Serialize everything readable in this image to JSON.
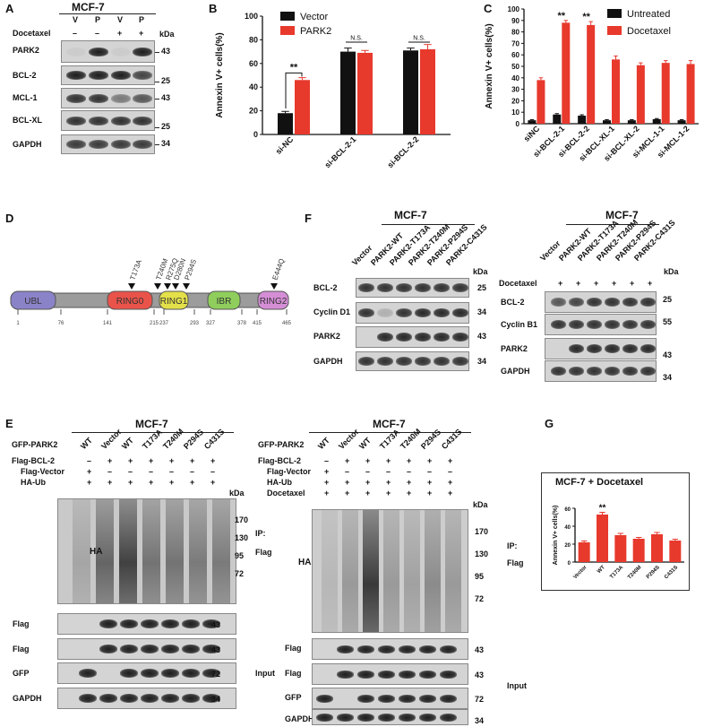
{
  "panels": {
    "A": "A",
    "B": "B",
    "C": "C",
    "D": "D",
    "E": "E",
    "F": "F",
    "G": "G"
  },
  "panelA": {
    "cell": "MCF-7",
    "lanes": [
      "V",
      "P",
      "V",
      "P"
    ],
    "docetaxel_label": "Docetaxel",
    "docetaxel": [
      "–",
      "–",
      "+",
      "+"
    ],
    "kda": "kDa",
    "rows": [
      {
        "name": "PARK2",
        "mw": "43"
      },
      {
        "name": "BCL-2",
        "mw": "25"
      },
      {
        "name": "MCL-1",
        "mw": "43"
      },
      {
        "name": "BCL-XL",
        "mw": "25"
      },
      {
        "name": "GAPDH",
        "mw": "34"
      }
    ]
  },
  "panelD": {
    "domains": [
      {
        "name": "UBL",
        "color": "#8a83c8"
      },
      {
        "name": "RING0",
        "color": "#e9534a"
      },
      {
        "name": "RING1",
        "color": "#e3e04a"
      },
      {
        "name": "IBR",
        "color": "#8fce5c"
      },
      {
        "name": "RING2",
        "color": "#d58ed6"
      }
    ],
    "positions": [
      "1",
      "76",
      "141",
      "215",
      "237",
      "293",
      "327",
      "378",
      "415",
      "465"
    ],
    "mutations": [
      "T173A",
      "T240M",
      "R275Q",
      "D280N",
      "P294S",
      "E444Q"
    ]
  },
  "panelF": {
    "cell": "MCF-7",
    "lanes": [
      "Vector",
      "PARK2-WT",
      "PARK2-T173A",
      "PARK2-T240M",
      "PARK2-P294S",
      "PARK2-C431S"
    ],
    "kda": "kDa",
    "docetaxel_label": "Docetaxel",
    "docetaxel": [
      "+",
      "+",
      "+",
      "+",
      "+",
      "+"
    ],
    "left_rows": [
      {
        "name": "BCL-2",
        "mw": "25"
      },
      {
        "name": "Cyclin D1",
        "mw": "34"
      },
      {
        "name": "PARK2",
        "mw": "43"
      },
      {
        "name": "GAPDH",
        "mw": "34"
      }
    ],
    "right_rows": [
      {
        "name": "BCL-2",
        "mw": "25"
      },
      {
        "name": "Cyclin B1",
        "mw": "55"
      },
      {
        "name": "PARK2",
        "mw": "43"
      },
      {
        "name": "GAPDH",
        "mw": "34"
      }
    ]
  },
  "panelE": {
    "cell": "MCF-7",
    "lanes": [
      "WT",
      "Vector",
      "WT",
      "T173A",
      "T240M",
      "P294S",
      "C431S"
    ],
    "row_labels": [
      "GFP-PARK2",
      "Flag-BCL-2",
      "Flag-Vector",
      "HA-Ub",
      "Docetaxel"
    ],
    "flag_bcl2": [
      "–",
      "+",
      "+",
      "+",
      "+",
      "+",
      "+"
    ],
    "flag_vector": [
      "+",
      "–",
      "–",
      "–",
      "–",
      "–",
      "–"
    ],
    "ha_ub": [
      "+",
      "+",
      "+",
      "+",
      "+",
      "+",
      "+"
    ],
    "docetaxel": [
      "+",
      "+",
      "+",
      "+",
      "+",
      "+",
      "+"
    ],
    "kda": "kDa",
    "ha_mw": [
      "170",
      "130",
      "95",
      "72"
    ],
    "flag_mw": "43",
    "ip": "IP:",
    "flag": "Flag",
    "input": "Input",
    "blots": {
      "ha": "HA",
      "flag": "Flag",
      "gfp": "GFP",
      "gapdh": "GAPDH"
    },
    "mw43": "43",
    "mw72": "72",
    "mw34": "34"
  },
  "chart_data": [
    {
      "type": "bar",
      "panel": "B",
      "categories": [
        "si-NC",
        "si-BCL-2-1",
        "si-BCL-2-2"
      ],
      "series": [
        {
          "name": "Vector",
          "color": "#111111",
          "values": [
            18,
            70,
            71
          ],
          "errors": [
            1.5,
            3,
            2
          ]
        },
        {
          "name": "PARK2",
          "color": "#e8392d",
          "values": [
            46,
            69,
            72
          ],
          "errors": [
            2,
            2,
            4
          ]
        }
      ],
      "ylabel": "Annexin V+ cells(%)",
      "ylim": [
        0,
        100
      ],
      "yticks": [
        "0",
        "20",
        "40",
        "60",
        "80",
        "100"
      ],
      "annotations": [
        "**",
        "N.S.",
        "N.S."
      ],
      "legend_position": "top-left"
    },
    {
      "type": "bar",
      "panel": "C",
      "categories": [
        "siNC",
        "si-BCL-2-1",
        "si-BCL-2-2",
        "si-BCL-XL-1",
        "si-BCL-XL-2",
        "si-MCL-1-1",
        "si-MCL-1-2"
      ],
      "series": [
        {
          "name": "Untreated",
          "color": "#111111",
          "values": [
            3,
            8,
            7,
            3,
            3,
            4,
            3
          ],
          "errors": [
            0.5,
            0.8,
            0.8,
            0.5,
            0.5,
            0.5,
            0.5
          ]
        },
        {
          "name": "Docetaxel",
          "color": "#e8392d",
          "values": [
            38,
            88,
            86,
            56,
            51,
            53,
            52
          ],
          "errors": [
            2,
            2,
            3,
            3,
            2,
            2,
            3
          ]
        }
      ],
      "ylabel": "Annexin V+ cells(%)",
      "ylim": [
        0,
        100
      ],
      "yticks": [
        "0",
        "10",
        "20",
        "30",
        "40",
        "50",
        "60",
        "70",
        "80",
        "90",
        "100"
      ],
      "annotations": [
        "**",
        "**"
      ],
      "legend_position": "top-right"
    },
    {
      "type": "bar",
      "panel": "G",
      "title": "MCF-7 + Docetaxel",
      "categories": [
        "Vector",
        "WT",
        "T173A",
        "T240M",
        "P294S",
        "C431S"
      ],
      "series": [
        {
          "color": "#e8392d",
          "values": [
            22,
            53,
            30,
            26,
            31,
            24
          ],
          "errors": [
            1.5,
            2.5,
            2,
            1.5,
            2,
            1.5
          ]
        }
      ],
      "ylabel": "Annexin V+ cells(%)",
      "ylim": [
        0,
        60
      ],
      "yticks": [
        "0",
        "20",
        "40",
        "60"
      ],
      "annotations": [
        "**"
      ]
    }
  ]
}
